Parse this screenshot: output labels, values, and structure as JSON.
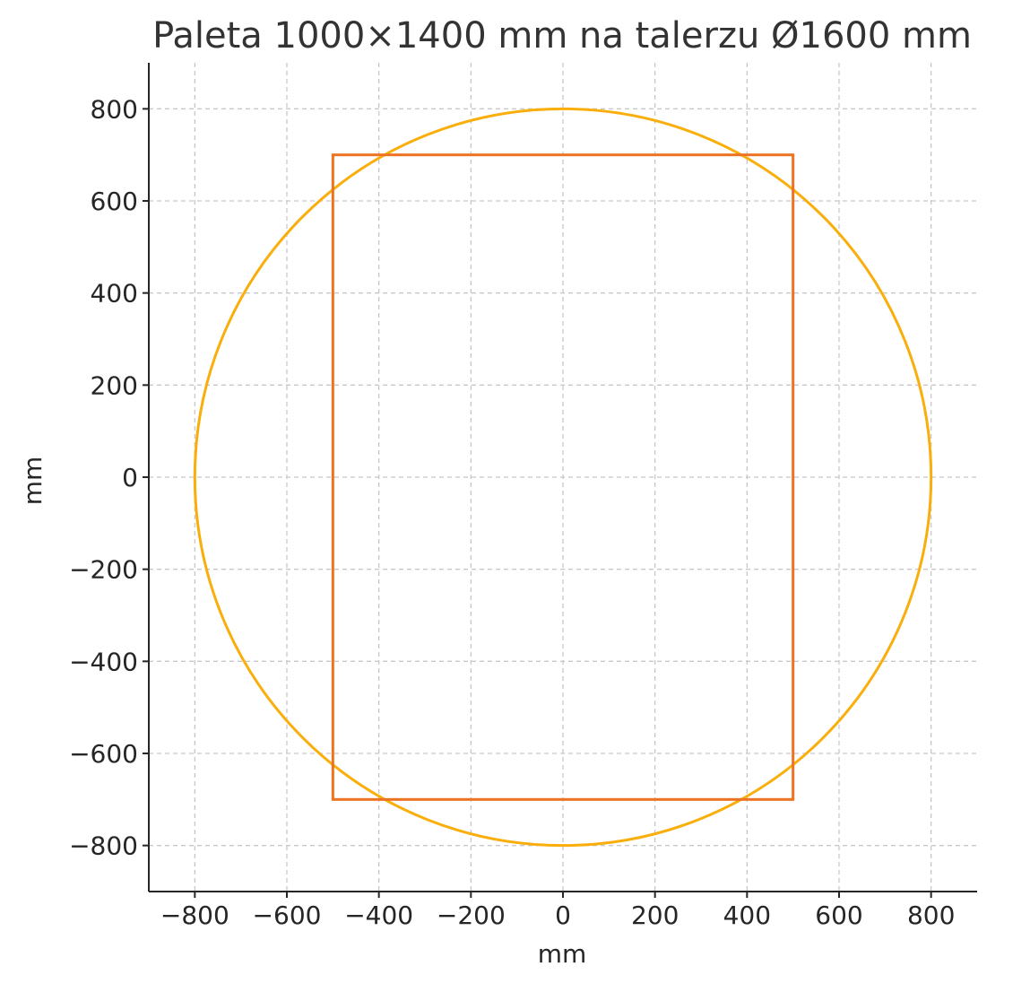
{
  "chart_data": {
    "type": "line",
    "title": "Paleta 1000×1400 mm na talerzu Ø1600 mm",
    "xlabel": "mm",
    "ylabel": "mm",
    "xlim": [
      -900,
      900
    ],
    "ylim": [
      -900,
      900
    ],
    "xticks": [
      -800,
      -600,
      -400,
      -200,
      0,
      200,
      400,
      600,
      800
    ],
    "yticks": [
      -800,
      -600,
      -400,
      -200,
      0,
      200,
      400,
      600,
      800
    ],
    "xtick_labels": [
      "−800",
      "−600",
      "−400",
      "−200",
      "0",
      "200",
      "400",
      "600",
      "800"
    ],
    "ytick_labels": [
      "−800",
      "−600",
      "−400",
      "−200",
      "0",
      "200",
      "400",
      "600",
      "800"
    ],
    "grid": true,
    "aspect": "equal",
    "shapes": [
      {
        "kind": "circle",
        "center": [
          0,
          0
        ],
        "radius": 800,
        "color": "#F9AE0B"
      },
      {
        "kind": "rectangle",
        "x": [
          -500,
          500
        ],
        "y": [
          -700,
          700
        ],
        "color": "#EC7322"
      }
    ]
  }
}
